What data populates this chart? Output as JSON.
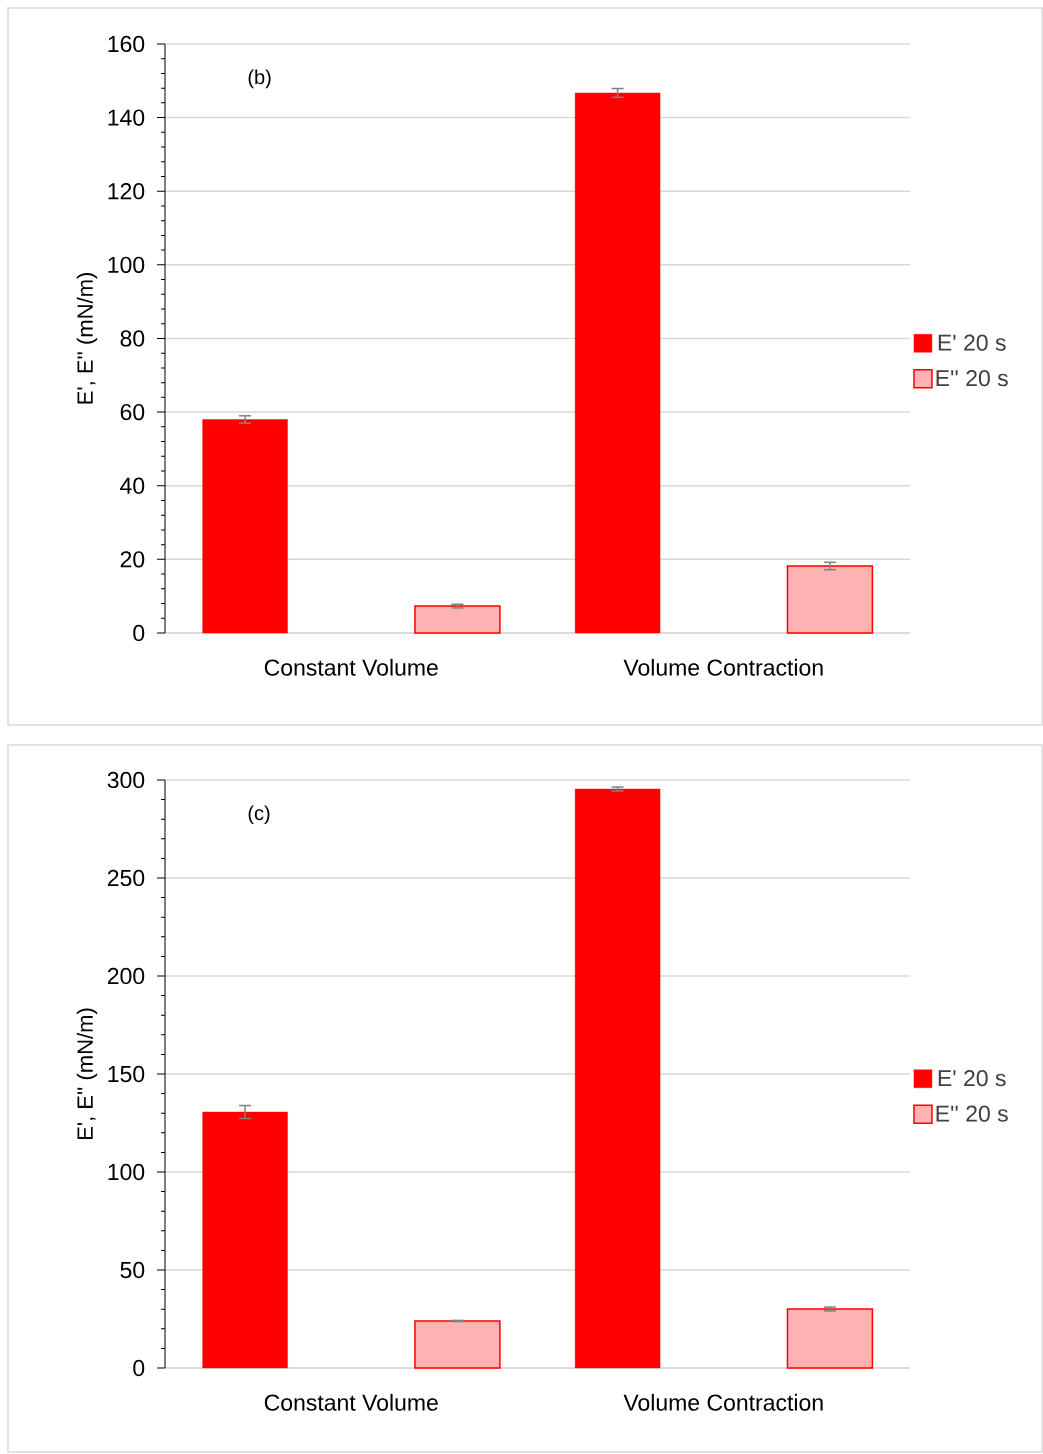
{
  "chart_data": [
    {
      "type": "bar",
      "ylabel": "E', E'' (mN/m)",
      "annotations": [
        "(b)"
      ],
      "categories": [
        "Constant Volume",
        "Volume Contraction"
      ],
      "series": [
        {
          "name": "E' 20 s",
          "color": "#ff0000",
          "values": [
            58,
            146.7
          ],
          "errors": [
            1,
            1.2
          ]
        },
        {
          "name": "E'' 20 s",
          "color": "#ff0000",
          "values": [
            7.3,
            18.2
          ],
          "errors": [
            0.5,
            1
          ]
        }
      ],
      "ylim": [
        0,
        160
      ],
      "yticks": [
        0,
        20,
        40,
        60,
        80,
        100,
        120,
        140,
        160
      ],
      "grid": "y",
      "legend": "right"
    },
    {
      "type": "bar",
      "ylabel": "E', E'' (mN/m)",
      "annotations": [
        "(c)"
      ],
      "categories": [
        "Constant Volume",
        "Volume Contraction"
      ],
      "series": [
        {
          "name": "E' 20 s",
          "color": "#ff0000",
          "values": [
            130.6,
            295.4
          ],
          "errors": [
            3.3,
            1
          ]
        },
        {
          "name": "E'' 20 s",
          "color": "#ff0000",
          "values": [
            24,
            30.1
          ],
          "errors": [
            0.3,
            1
          ]
        }
      ],
      "ylim": [
        0,
        300
      ],
      "yticks": [
        0,
        50,
        100,
        150,
        200,
        250,
        300
      ],
      "grid": "y",
      "legend": "right"
    }
  ]
}
